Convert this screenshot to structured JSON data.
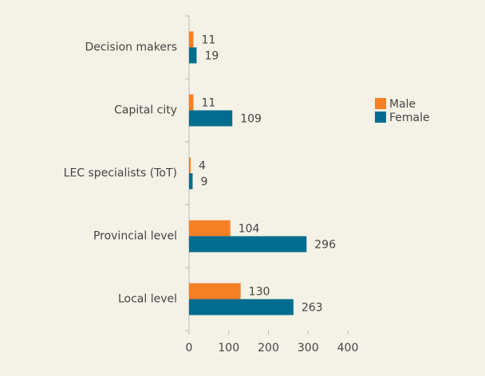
{
  "chart_data": {
    "type": "bar",
    "orientation": "horizontal",
    "categories": [
      "Decision makers",
      "Capital city",
      "LEC specialists (ToT)",
      "Provincial level",
      "Local level"
    ],
    "series": [
      {
        "name": "Male",
        "color": "#f58025",
        "values": [
          11,
          11,
          4,
          104,
          130
        ]
      },
      {
        "name": "Female",
        "color": "#006d8f",
        "values": [
          19,
          109,
          9,
          296,
          263
        ]
      }
    ],
    "xlim": [
      0,
      400
    ],
    "xticks": [
      0,
      100,
      200,
      300,
      400
    ],
    "grid": false,
    "legend": "right"
  }
}
